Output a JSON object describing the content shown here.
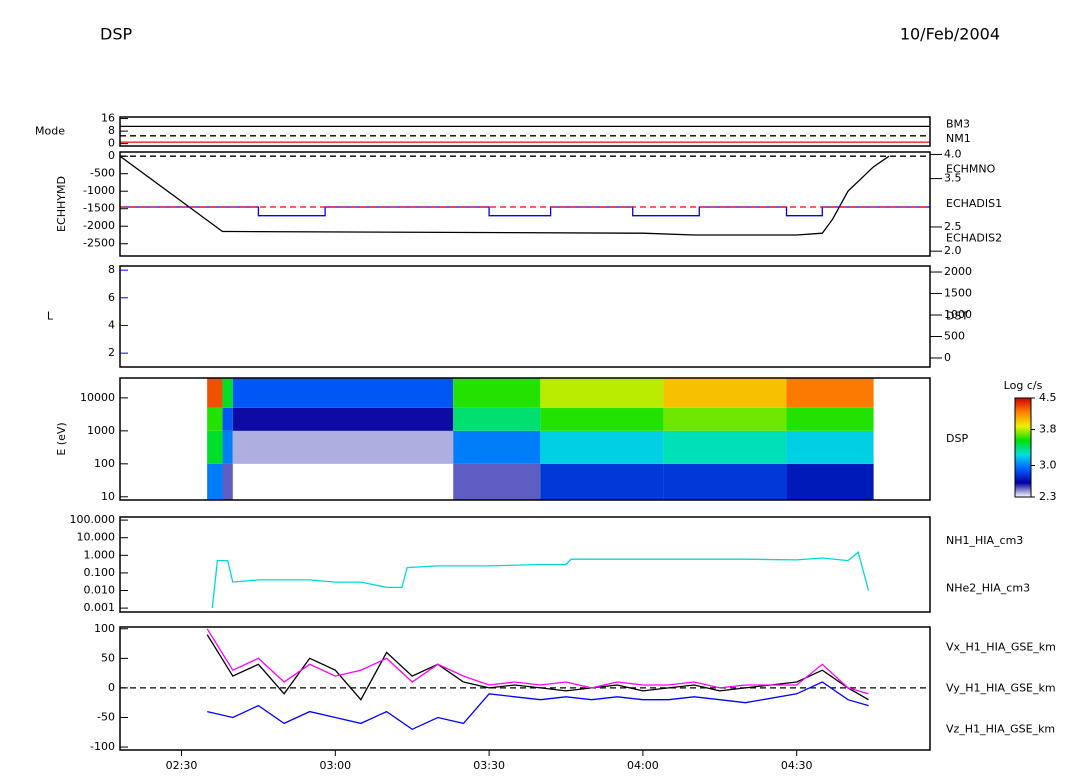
{
  "header": {
    "title": "DSP",
    "date": "10/Feb/2004"
  },
  "chart_data": [
    {
      "type": "line",
      "ylabel": "Mode",
      "xlim": [
        18,
        176
      ],
      "ylim": [
        -1.5,
        17
      ],
      "yticks": [
        0,
        8,
        16
      ],
      "series": [
        {
          "color": "#000000",
          "x": [
            18,
            176
          ],
          "values": [
            11,
            11
          ]
        },
        {
          "color": "#000000",
          "dash": true,
          "x": [
            18,
            176
          ],
          "values": [
            5,
            5
          ]
        },
        {
          "color": "#ff0000",
          "x": [
            18,
            176
          ],
          "values": [
            1,
            1
          ]
        }
      ],
      "right_labels": [
        {
          "text": "BM3",
          "color": "#ff0000"
        },
        {
          "text": "NM1",
          "color": "#ff0000"
        }
      ]
    },
    {
      "type": "line",
      "ylabel": "ECHHYMD",
      "xlim": [
        18,
        176
      ],
      "ylim": [
        -2850,
        120
      ],
      "yticks": [
        0,
        -500,
        -1000,
        -1500,
        -2000,
        -2500
      ],
      "y2lim": [
        1.9,
        4.05
      ],
      "y2ticks": [
        {
          "value": 2,
          "label": "2.0"
        },
        2.5,
        3.5,
        {
          "value": 4,
          "label": "4.0"
        }
      ],
      "series": [
        {
          "color": "#000000",
          "dash": true,
          "x": [
            18,
            176
          ],
          "values": [
            0,
            0
          ]
        },
        {
          "color": "#000000",
          "x": [
            18,
            38,
            40,
            120,
            130,
            150,
            155,
            157,
            160,
            165,
            168
          ],
          "values": [
            0,
            -2150,
            -2150,
            -2200,
            -2250,
            -2250,
            -2200,
            -1800,
            -1000,
            -300,
            0
          ]
        },
        {
          "color": "#0000ff",
          "x": [
            18,
            45,
            45,
            58,
            58,
            90,
            90,
            102,
            102,
            118,
            118,
            131,
            131,
            148,
            148,
            155,
            155,
            176
          ],
          "values": [
            -1450,
            -1450,
            -1700,
            -1700,
            -1450,
            -1450,
            -1700,
            -1700,
            -1450,
            -1450,
            -1700,
            -1700,
            -1450,
            -1450,
            -1700,
            -1700,
            -1450,
            -1450
          ]
        },
        {
          "color": "#ff0000",
          "dash": true,
          "x": [
            18,
            176
          ],
          "values": [
            -1450,
            -1450
          ]
        }
      ],
      "right_labels": [
        {
          "text": "ECHMNO",
          "color": "#000000"
        },
        {
          "text": "ECHADIS1",
          "color": "#0000ff"
        },
        {
          "text": "ECHADIS2",
          "color": "#ff0000"
        }
      ]
    },
    {
      "type": "line",
      "ylabel": "L",
      "ylabel_color": "#0000ff",
      "xlim": [
        18,
        176
      ],
      "ylim": [
        1,
        8.3
      ],
      "yticks": [
        2,
        4,
        6,
        8
      ],
      "y2lim": [
        -210,
        2140
      ],
      "y2ticks": [
        0,
        500,
        1000,
        1500,
        2000
      ],
      "series": [],
      "right_labels": [
        {
          "text": "DST",
          "color": "#ff0000"
        }
      ]
    },
    {
      "type": "heatmap",
      "ylabel": "E (eV)",
      "log_y": true,
      "xlim": [
        18,
        176
      ],
      "ylim": [
        8,
        40000
      ],
      "yticks": [
        10,
        100,
        1000,
        10000
      ],
      "x_edges": [
        18,
        35,
        38,
        40,
        83,
        100,
        124,
        148,
        165,
        176
      ],
      "y_edges": [
        8,
        100,
        1000,
        5000,
        40000
      ],
      "z": [
        [
          null,
          null,
          null,
          null
        ],
        [
          3.0,
          3.5,
          3.6,
          4.3
        ],
        [
          2.5,
          3.0,
          2.9,
          3.5
        ],
        [
          null,
          2.4,
          2.6,
          2.9
        ],
        [
          2.5,
          3.0,
          3.4,
          3.6
        ],
        [
          2.8,
          3.2,
          3.6,
          3.8
        ],
        [
          2.8,
          3.3,
          3.7,
          4.0
        ],
        [
          2.7,
          3.2,
          3.6,
          4.2
        ],
        [
          null,
          null,
          null,
          null
        ]
      ],
      "zlim": [
        2.3,
        4.5
      ],
      "zticks": [
        2.3,
        {
          "value": 3,
          "label": "3.0"
        },
        3.8,
        4.5
      ],
      "colorbar_title": "Log c/s",
      "colormap": [
        "#ffffff",
        "#0000a0",
        "#0060ff",
        "#00e0e0",
        "#00e000",
        "#f0f000",
        "#ff8000",
        "#d00000"
      ],
      "right_labels": [
        {
          "text": "DSP",
          "color": "#000000"
        }
      ]
    },
    {
      "type": "line",
      "log_y": true,
      "xlim": [
        18,
        176
      ],
      "ylim": [
        0.0006,
        150
      ],
      "yticks": [
        {
          "value": 100,
          "label": "100.000"
        },
        {
          "value": 10,
          "label": "10.000"
        },
        {
          "value": 1,
          "label": "1.000"
        },
        {
          "value": 0.1,
          "label": "0.100"
        },
        {
          "value": 0.01,
          "label": "0.010"
        },
        {
          "value": 0.001,
          "label": "0.001"
        }
      ],
      "series": [
        {
          "name": "NH1_HIA_cm3",
          "color": "#00d8d8",
          "x": [
            36,
            37,
            39,
            40,
            45,
            50,
            55,
            60,
            65,
            70,
            73,
            74,
            80,
            90,
            100,
            105,
            106,
            110,
            120,
            130,
            140,
            150,
            155,
            160,
            162,
            164
          ],
          "values": [
            0.001,
            0.5,
            0.5,
            0.03,
            0.04,
            0.04,
            0.04,
            0.03,
            0.03,
            0.015,
            0.015,
            0.2,
            0.25,
            0.25,
            0.3,
            0.3,
            0.6,
            0.6,
            0.6,
            0.6,
            0.6,
            0.55,
            0.7,
            0.5,
            1.5,
            0.01
          ]
        },
        {
          "name": "NHe2_HIA_cm3",
          "color": "#ff0000",
          "x": [],
          "values": []
        }
      ]
    },
    {
      "type": "line",
      "xlim": [
        18,
        176
      ],
      "ylim": [
        -105,
        103
      ],
      "yticks": [
        -100,
        -50,
        0,
        50,
        100
      ],
      "xticks": [
        {
          "value": 30,
          "label": "02:30"
        },
        {
          "value": 60,
          "label": "03:00"
        },
        {
          "value": 90,
          "label": "03:30"
        },
        {
          "value": 120,
          "label": "04:00"
        },
        {
          "value": 150,
          "label": "04:30"
        }
      ],
      "series": [
        {
          "color": "#000000",
          "dash": true,
          "x": [
            18,
            176
          ],
          "values": [
            0,
            0
          ]
        },
        {
          "name": "Vx_H1_HIA_GSE_km",
          "color": "#000000",
          "x": [
            35,
            40,
            45,
            50,
            55,
            60,
            65,
            70,
            75,
            80,
            85,
            90,
            95,
            100,
            105,
            110,
            115,
            120,
            125,
            130,
            135,
            140,
            150,
            155,
            160,
            164
          ],
          "values": [
            90,
            20,
            40,
            -10,
            50,
            30,
            -20,
            60,
            20,
            40,
            10,
            0,
            5,
            0,
            -5,
            0,
            5,
            -5,
            0,
            5,
            -5,
            0,
            10,
            30,
            0,
            -20
          ]
        },
        {
          "name": "Vy_H1_HIA_GSE_km",
          "color": "#0000ff",
          "x": [
            35,
            40,
            45,
            50,
            55,
            60,
            65,
            70,
            75,
            80,
            85,
            90,
            95,
            100,
            105,
            110,
            115,
            120,
            125,
            130,
            135,
            140,
            150,
            155,
            160,
            164
          ],
          "values": [
            -40,
            -50,
            -30,
            -60,
            -40,
            -50,
            -60,
            -40,
            -70,
            -50,
            -60,
            -10,
            -15,
            -20,
            -15,
            -20,
            -15,
            -20,
            -20,
            -15,
            -20,
            -25,
            -10,
            10,
            -20,
            -30
          ]
        },
        {
          "name": "Vz_H1_HIA_GSE_km",
          "color": "#ff00ff",
          "x": [
            35,
            40,
            45,
            50,
            55,
            60,
            65,
            70,
            75,
            80,
            85,
            90,
            95,
            100,
            105,
            110,
            115,
            120,
            125,
            130,
            135,
            140,
            150,
            155,
            160,
            164
          ],
          "values": [
            100,
            30,
            50,
            10,
            40,
            20,
            30,
            50,
            10,
            40,
            20,
            5,
            10,
            5,
            10,
            0,
            10,
            5,
            5,
            10,
            0,
            5,
            5,
            40,
            0,
            -10
          ]
        }
      ]
    }
  ]
}
